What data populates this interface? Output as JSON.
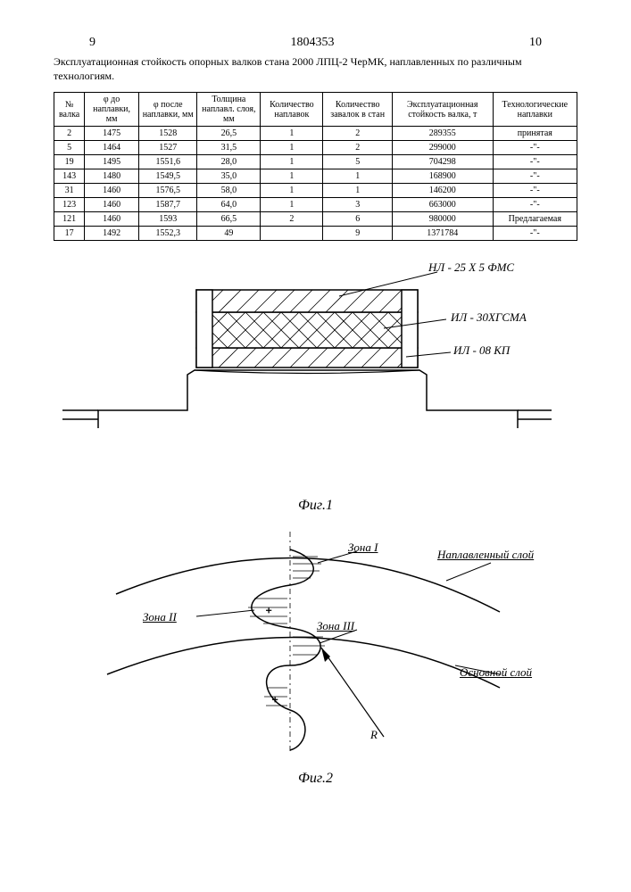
{
  "header": {
    "left_page": "9",
    "doc_number": "1804353",
    "right_page": "10"
  },
  "title": "Эксплуатационная стойкость опорных валков стана 2000 ЛПЦ-2 ЧерМК, наплавленных по различным технологиям.",
  "table": {
    "columns": [
      "№ валка",
      "φ до наплавки, мм",
      "φ после наплавки, мм",
      "Толщина наплавл. слоя, мм",
      "Количество наплавок",
      "Количество завалок в стан",
      "Эксплуатационная стойкость валка, т",
      "Технологические наплавки"
    ],
    "rows": [
      [
        "2",
        "1475",
        "1528",
        "26,5",
        "1",
        "2",
        "289355",
        "принятая"
      ],
      [
        "5",
        "1464",
        "1527",
        "31,5",
        "1",
        "2",
        "299000",
        "-\"-"
      ],
      [
        "19",
        "1495",
        "1551,6",
        "28,0",
        "1",
        "5",
        "704298",
        "-\"-"
      ],
      [
        "143",
        "1480",
        "1549,5",
        "35,0",
        "1",
        "1",
        "168900",
        "-\"-"
      ],
      [
        "31",
        "1460",
        "1576,5",
        "58,0",
        "1",
        "1",
        "146200",
        "-\"-"
      ],
      [
        "123",
        "1460",
        "1587,7",
        "64,0",
        "1",
        "3",
        "663000",
        "-\"-"
      ],
      [
        "121",
        "1460",
        "1593",
        "66,5",
        "2",
        "6",
        "980000",
        "Предлагаемая"
      ],
      [
        "17",
        "1492",
        "1552,3",
        "49",
        "",
        "9",
        "1371784",
        "-\"-"
      ]
    ]
  },
  "fig1": {
    "caption": "Фиг.1",
    "labels": {
      "l1": "НЛ - 25 Х 5 ФМС",
      "l2": "ИЛ - 30ХГСМА",
      "l3": "ИЛ - 08 КП"
    },
    "colors": {
      "stroke": "#000000",
      "hatch": "#000000",
      "bg": "#ffffff"
    }
  },
  "fig2": {
    "caption": "Фиг.2",
    "labels": {
      "zone1": "Зона I",
      "zone2": "Зона II",
      "zone3": "Зона III",
      "napl": "Наплавленный слой",
      "osn": "Основной слой",
      "R": "R"
    },
    "colors": {
      "stroke": "#000000",
      "bg": "#ffffff"
    }
  }
}
